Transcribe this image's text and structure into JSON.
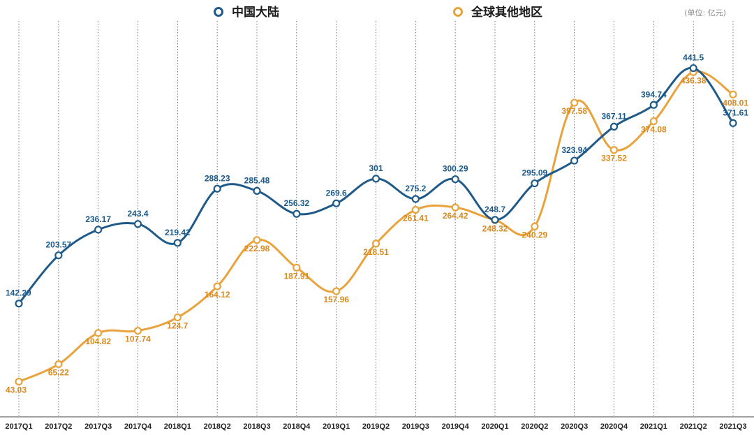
{
  "chart_data": {
    "type": "line",
    "title": "",
    "unit_label": "(单位: 亿元)",
    "xlabel": "",
    "ylabel": "",
    "ylim": [
      40,
      450
    ],
    "grid": "vertical dotted",
    "legend_position": "top-center",
    "categories": [
      "2017Q1",
      "2017Q2",
      "2017Q3",
      "2017Q4",
      "2018Q1",
      "2018Q2",
      "2018Q3",
      "2018Q4",
      "2019Q1",
      "2019Q2",
      "2019Q3",
      "2019Q4",
      "2020Q1",
      "2020Q2",
      "2020Q3",
      "2020Q4",
      "2021Q1",
      "2021Q2",
      "2021Q3"
    ],
    "series": [
      {
        "name": "中国大陆",
        "color": "#1f5a88",
        "values": [
          142.29,
          203.57,
          236.17,
          243.4,
          219.42,
          288.23,
          285.48,
          256.32,
          269.6,
          301,
          275.2,
          300.29,
          248.7,
          295.09,
          323.94,
          367.11,
          394.74,
          441.5,
          371.61
        ],
        "labels": [
          "142.29",
          "203.57",
          "236.17",
          "243.4",
          "219.42",
          "288.23",
          "285.48",
          "256.32",
          "269.6",
          "301",
          "275.2",
          "300.29",
          "248.7",
          "295.09",
          "323.94",
          "367.11",
          "394.74",
          "441.5",
          "371.61"
        ]
      },
      {
        "name": "全球其他地区",
        "color": "#e8a33c",
        "values": [
          43.03,
          65.22,
          104.82,
          107.74,
          124.7,
          164.12,
          222.98,
          187.91,
          157.96,
          218.51,
          261.41,
          264.42,
          248.32,
          240.29,
          397.58,
          337.52,
          374.08,
          436.38,
          408.01
        ],
        "labels": [
          "43.03",
          "65.22",
          "104.82",
          "107.74",
          "124.7",
          "164.12",
          "222.98",
          "187.91",
          "157.96",
          "218.51",
          "261.41",
          "264.42",
          "248.32",
          "240.29",
          "397.58",
          "337.52",
          "374.08",
          "436.38",
          "408.01"
        ]
      }
    ]
  }
}
